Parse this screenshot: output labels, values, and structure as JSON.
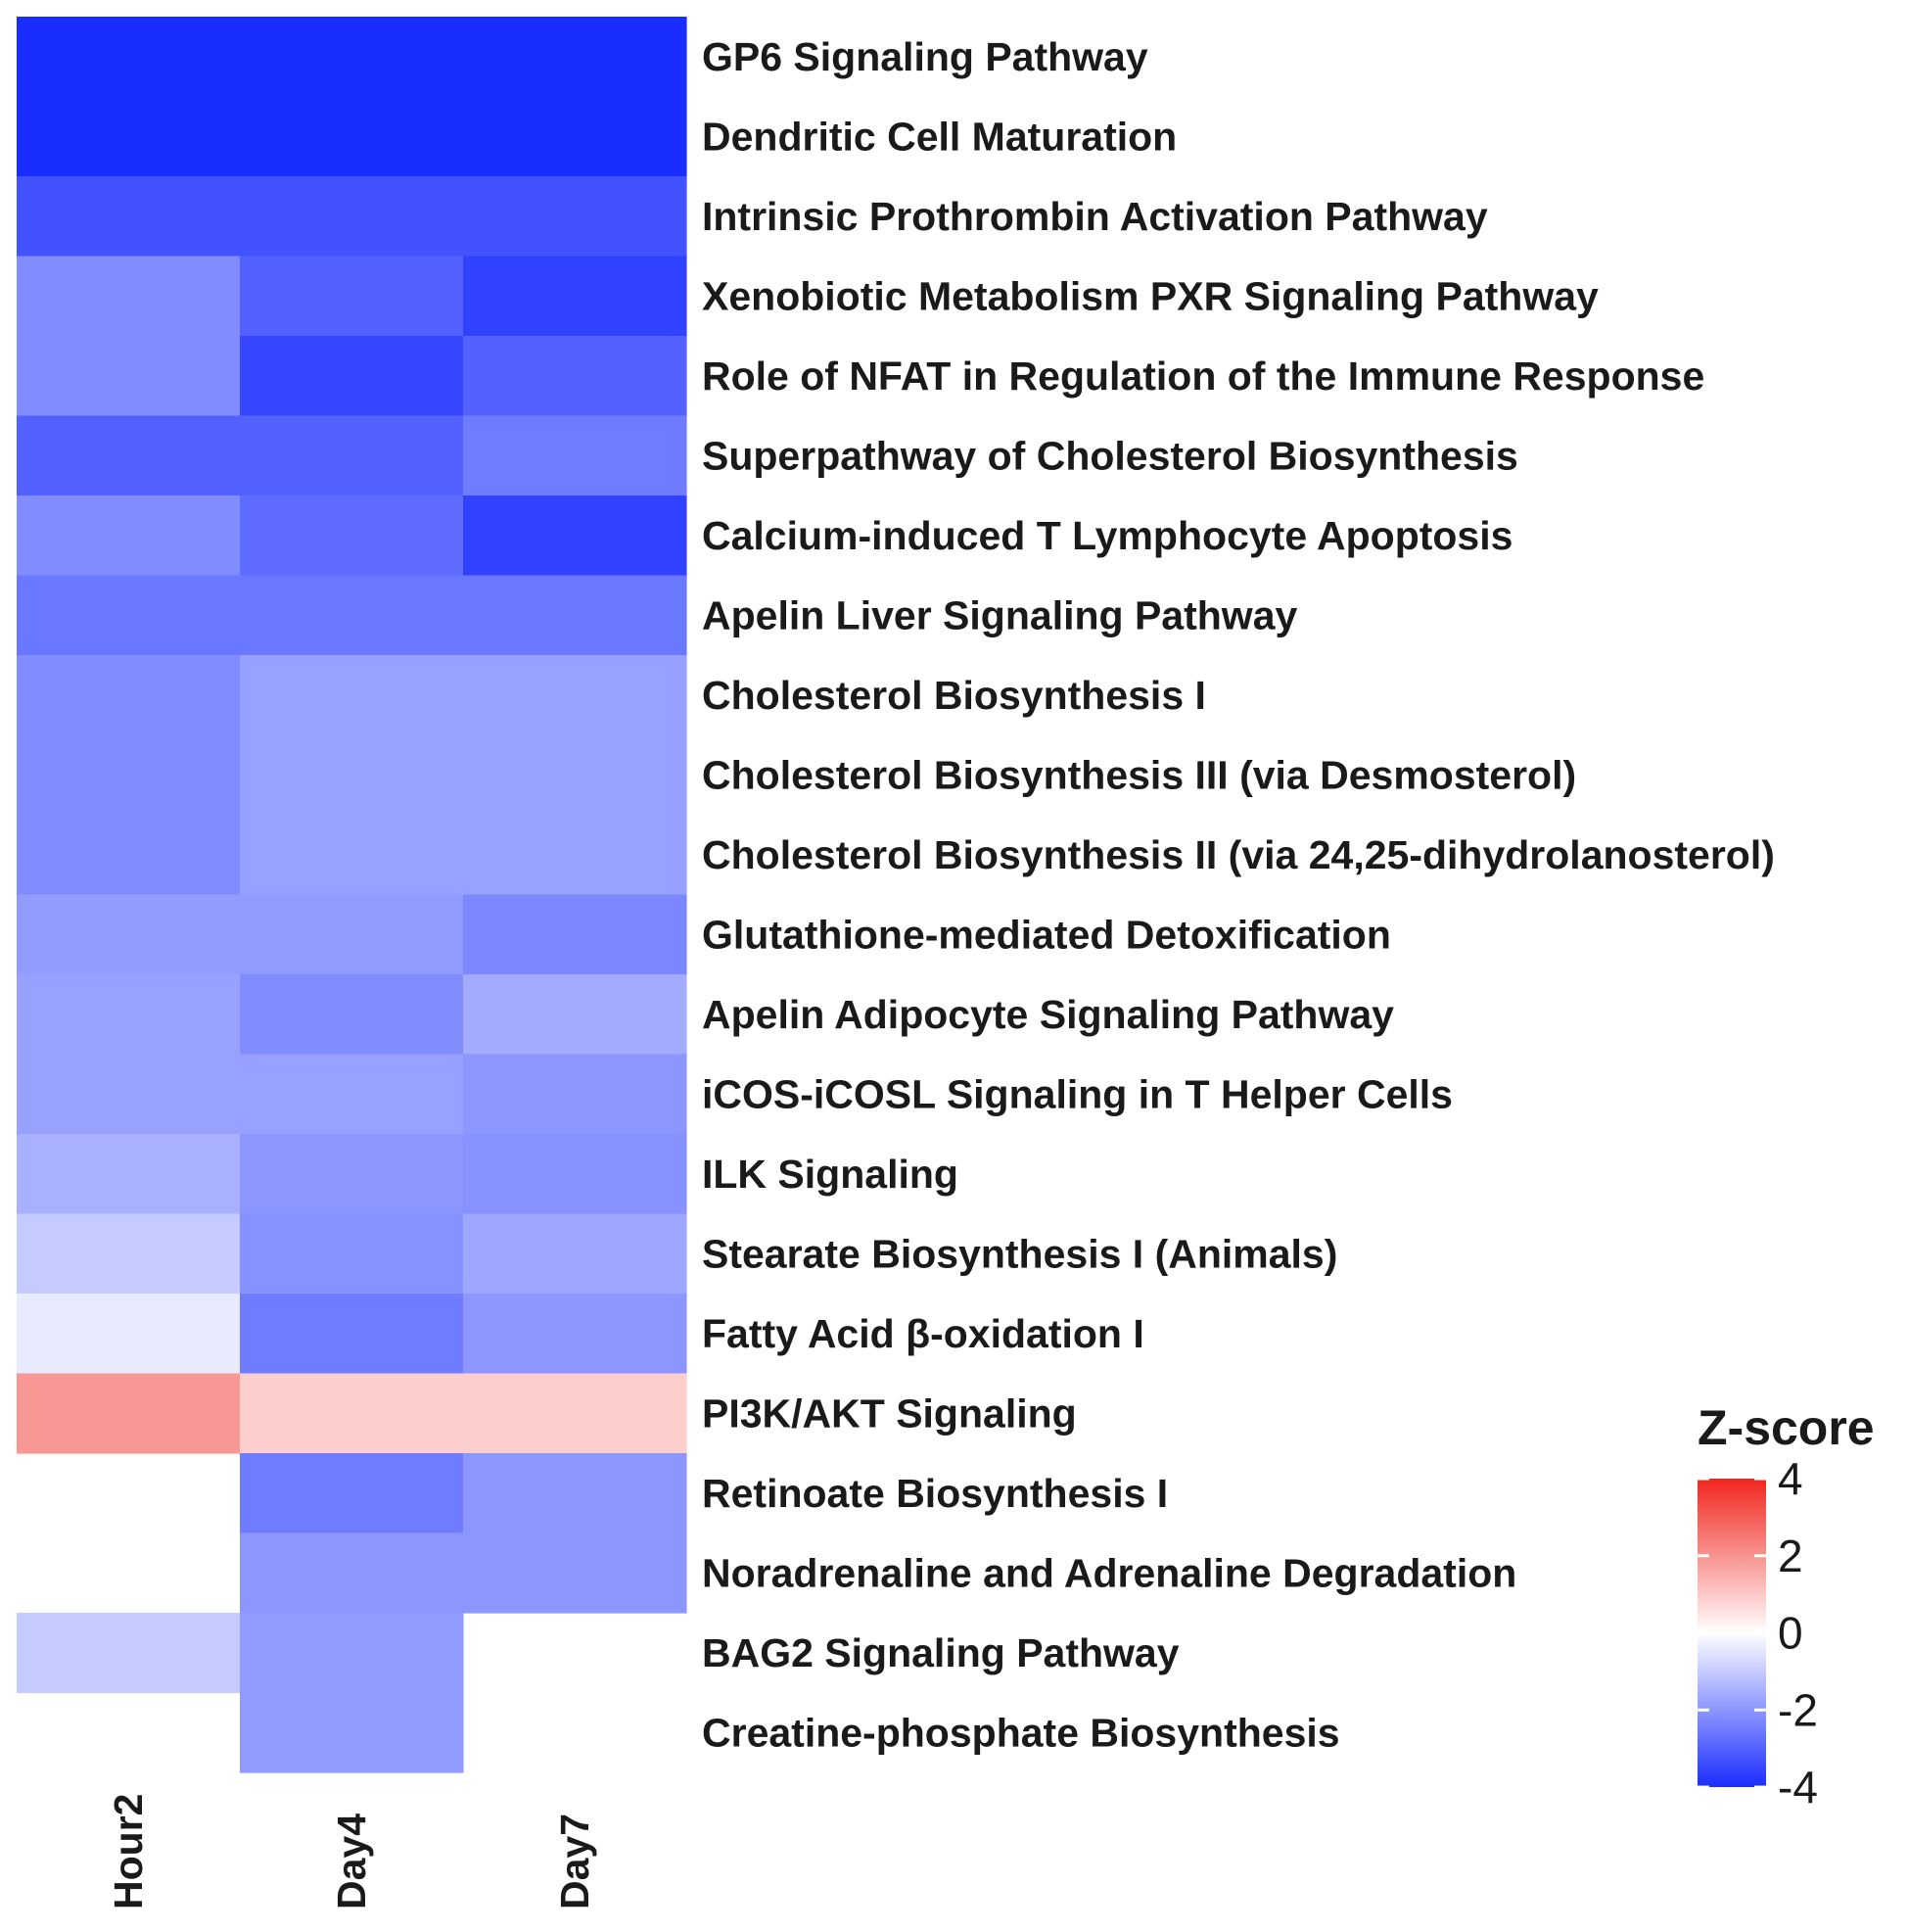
{
  "chart_data": {
    "type": "heatmap",
    "columns": [
      "Hour2",
      "Day4",
      "Day7"
    ],
    "rows": [
      "GP6 Signaling Pathway",
      "Dendritic Cell Maturation",
      "Intrinsic Prothrombin Activation Pathway",
      "Xenobiotic Metabolism PXR Signaling Pathway",
      "Role of NFAT in Regulation of the Immune Response",
      "Superpathway of Cholesterol Biosynthesis",
      "Calcium-induced T Lymphocyte Apoptosis",
      "Apelin Liver Signaling Pathway",
      "Cholesterol Biosynthesis I",
      "Cholesterol Biosynthesis III (via Desmosterol)",
      "Cholesterol Biosynthesis II (via 24,25-dihydrolanosterol)",
      "Glutathione-mediated Detoxification",
      "Apelin Adipocyte Signaling Pathway",
      "iCOS-iCOSL Signaling in T Helper Cells",
      "ILK Signaling",
      "Stearate Biosynthesis I (Animals)",
      "Fatty Acid β-oxidation I",
      "PI3K/AKT Signaling",
      "Retinoate Biosynthesis I",
      "Noradrenaline and Adrenaline Degradation",
      "BAG2 Signaling Pathway",
      "Creatine-phosphate Biosynthesis"
    ],
    "values": [
      [
        -4.0,
        -4.0,
        -4.0
      ],
      [
        -4.0,
        -4.0,
        -4.0
      ],
      [
        -3.3,
        -3.3,
        -3.3
      ],
      [
        -2.2,
        -3.0,
        -3.6
      ],
      [
        -2.2,
        -3.5,
        -3.0
      ],
      [
        -3.0,
        -3.0,
        -2.5
      ],
      [
        -2.2,
        -2.8,
        -3.6
      ],
      [
        -2.6,
        -2.6,
        -2.6
      ],
      [
        -2.2,
        -1.8,
        -1.8
      ],
      [
        -2.2,
        -1.8,
        -1.8
      ],
      [
        -2.2,
        -1.8,
        -1.8
      ],
      [
        -1.9,
        -1.9,
        -2.3
      ],
      [
        -1.8,
        -2.2,
        -1.6
      ],
      [
        -1.8,
        -1.8,
        -2.0
      ],
      [
        -1.5,
        -2.0,
        -2.1
      ],
      [
        -1.0,
        -2.1,
        -1.7
      ],
      [
        -0.4,
        -2.5,
        -2.0
      ],
      [
        1.9,
        0.9,
        0.9
      ],
      [
        null,
        -2.5,
        -2.0
      ],
      [
        null,
        -2.0,
        -2.0
      ],
      [
        -1.0,
        -1.9,
        null
      ],
      [
        null,
        -1.9,
        null
      ]
    ],
    "legend": {
      "title": "Z-score",
      "ticks": [
        4,
        2,
        0,
        -2,
        -4
      ],
      "range": [
        -4,
        4
      ],
      "low_color": "#1a2dff",
      "mid_color": "#ffffff",
      "high_color": "#f0261e"
    }
  }
}
